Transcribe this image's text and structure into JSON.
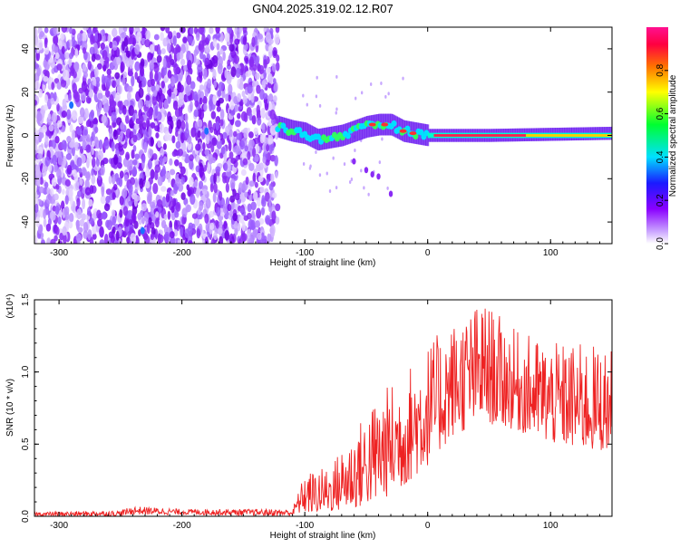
{
  "title": "GN04.2025.319.02.12.R07",
  "chart_data": [
    {
      "type": "heatmap",
      "name": "spectrogram",
      "xlabel": "Height of straight line (km)",
      "ylabel": "Frequency (Hz)",
      "xlim": [
        -320,
        150
      ],
      "ylim": [
        -50,
        50
      ],
      "xticks": [
        -300,
        -200,
        -100,
        0,
        100
      ],
      "yticks": [
        -40,
        -20,
        0,
        20,
        40
      ],
      "xtick_labels": [
        "-300",
        "-200",
        "-100",
        "0",
        "100"
      ],
      "ytick_labels": [
        "-40",
        "-20",
        "0",
        "20",
        "40"
      ],
      "noise_region_end_km": -122,
      "signal_track": [
        {
          "x": -122,
          "f": 4
        },
        {
          "x": -110,
          "f": 2
        },
        {
          "x": -100,
          "f": 1
        },
        {
          "x": -90,
          "f": -2
        },
        {
          "x": -80,
          "f": -1
        },
        {
          "x": -70,
          "f": 0
        },
        {
          "x": -60,
          "f": 2
        },
        {
          "x": -50,
          "f": 4
        },
        {
          "x": -40,
          "f": 5
        },
        {
          "x": -30,
          "f": 5
        },
        {
          "x": -20,
          "f": 2
        },
        {
          "x": -10,
          "f": 1
        },
        {
          "x": 0,
          "f": 0
        },
        {
          "x": 50,
          "f": 0
        },
        {
          "x": 100,
          "f": 0.5
        },
        {
          "x": 150,
          "f": 1
        }
      ]
    },
    {
      "type": "line",
      "name": "snr",
      "xlabel": "Height of straight line (km)",
      "ylabel": "SNR (10 * v/v)",
      "y_scale_label": "(x10⁴)",
      "xlim": [
        -320,
        150
      ],
      "ylim": [
        0,
        1.5
      ],
      "xticks": [
        -300,
        -200,
        -100,
        0,
        100
      ],
      "yticks": [
        0,
        0.5,
        1.0,
        1.5
      ],
      "xtick_labels": [
        "-300",
        "-200",
        "-100",
        "0",
        "100"
      ],
      "ytick_labels": [
        "0.0",
        "0.5",
        "1.0",
        "1.5"
      ],
      "color": "#ee2222",
      "envelope": [
        {
          "x": -320,
          "low": 0.0,
          "high": 0.03
        },
        {
          "x": -250,
          "low": 0.0,
          "high": 0.04
        },
        {
          "x": -240,
          "low": 0.01,
          "high": 0.07
        },
        {
          "x": -200,
          "low": 0.01,
          "high": 0.05
        },
        {
          "x": -110,
          "low": 0.0,
          "high": 0.05
        },
        {
          "x": -100,
          "low": 0.02,
          "high": 0.3
        },
        {
          "x": -80,
          "low": 0.03,
          "high": 0.35
        },
        {
          "x": -60,
          "low": 0.05,
          "high": 0.6
        },
        {
          "x": -40,
          "low": 0.1,
          "high": 0.85
        },
        {
          "x": -20,
          "low": 0.2,
          "high": 1.0
        },
        {
          "x": 0,
          "low": 0.35,
          "high": 1.2
        },
        {
          "x": 20,
          "low": 0.55,
          "high": 1.35
        },
        {
          "x": 45,
          "low": 0.65,
          "high": 1.5
        },
        {
          "x": 70,
          "low": 0.6,
          "high": 1.3
        },
        {
          "x": 100,
          "low": 0.5,
          "high": 1.2
        },
        {
          "x": 130,
          "low": 0.45,
          "high": 1.2
        },
        {
          "x": 150,
          "low": 0.45,
          "high": 1.15
        }
      ]
    }
  ],
  "colorbar": {
    "label": "Normalized spectral amplitude",
    "range": [
      0,
      1
    ],
    "ticks": [
      0.0,
      0.2,
      0.4,
      0.6,
      0.8
    ],
    "tick_labels": [
      "0.0",
      "0.2",
      "0.4",
      "0.6",
      "0.8"
    ],
    "colors": [
      "#ffffff",
      "#8a00ff",
      "#1a1aff",
      "#00e0ff",
      "#00ff30",
      "#ffff00",
      "#ff7000",
      "#ff0040",
      "#ff1090"
    ]
  }
}
